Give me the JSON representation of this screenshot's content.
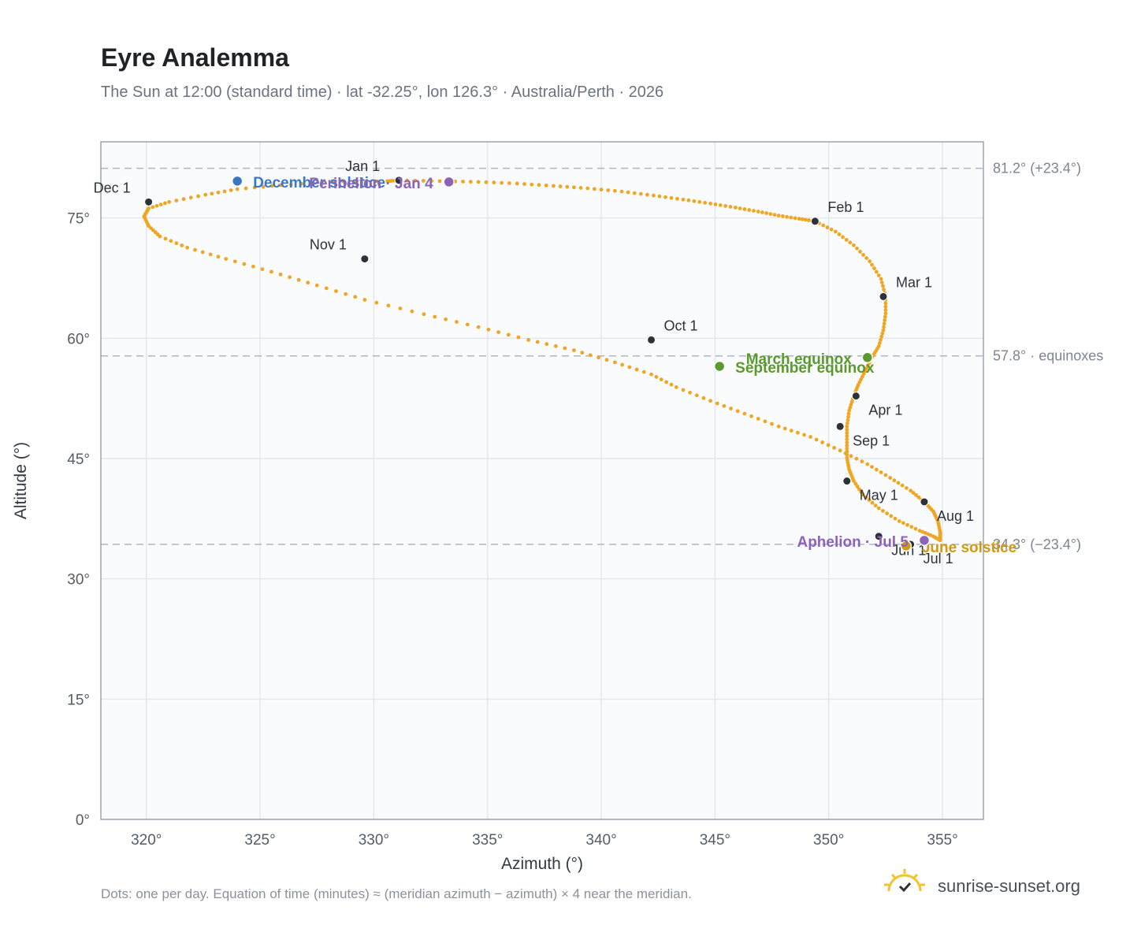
{
  "chart_data": {
    "type": "scatter",
    "title": "Eyre Analemma",
    "subtitle": "The Sun at 12:00 (standard time) · lat -32.25°, lon 126.3° · Australia/Perth · 2026",
    "xlabel": "Azimuth (°)",
    "ylabel": "Altitude (°)",
    "xlim": [
      318,
      356.8
    ],
    "ylim": [
      0,
      84.5
    ],
    "x_ticks": [
      {
        "value": 320,
        "label": "320°"
      },
      {
        "value": 325,
        "label": "325°"
      },
      {
        "value": 330,
        "label": "330°"
      },
      {
        "value": 335,
        "label": "335°"
      },
      {
        "value": 340,
        "label": "340°"
      },
      {
        "value": 345,
        "label": "345°"
      },
      {
        "value": 350,
        "label": "350°"
      },
      {
        "value": 355,
        "label": "355°"
      }
    ],
    "y_ticks": [
      {
        "value": 0,
        "label": "0°"
      },
      {
        "value": 15,
        "label": "15°"
      },
      {
        "value": 30,
        "label": "30°"
      },
      {
        "value": 45,
        "label": "45°"
      },
      {
        "value": 60,
        "label": "60°"
      },
      {
        "value": 75,
        "label": "75°"
      }
    ],
    "grid": true,
    "reference_lines": [
      {
        "altitude": 81.2,
        "label": "81.2° (+23.4°)"
      },
      {
        "altitude": 57.8,
        "label": "57.8° · equinoxes"
      },
      {
        "altitude": 34.3,
        "label": "34.3° (−23.4°)"
      }
    ],
    "month_markers": [
      {
        "label": "Jan 1",
        "azimuth": 331.1,
        "altitude": 79.7
      },
      {
        "label": "Feb 1",
        "azimuth": 349.4,
        "altitude": 74.6
      },
      {
        "label": "Mar 1",
        "azimuth": 352.4,
        "altitude": 65.2
      },
      {
        "label": "Apr 1",
        "azimuth": 351.2,
        "altitude": 52.8
      },
      {
        "label": "May 1",
        "azimuth": 350.8,
        "altitude": 42.2
      },
      {
        "label": "Jun 1",
        "azimuth": 352.2,
        "altitude": 35.3
      },
      {
        "label": "Jul 1",
        "azimuth": 353.6,
        "altitude": 34.3
      },
      {
        "label": "Aug 1",
        "azimuth": 354.2,
        "altitude": 39.6
      },
      {
        "label": "Sep 1",
        "azimuth": 350.5,
        "altitude": 49.0
      },
      {
        "label": "Oct 1",
        "azimuth": 342.2,
        "altitude": 59.8
      },
      {
        "label": "Nov 1",
        "azimuth": 329.6,
        "altitude": 69.9
      },
      {
        "label": "Dec 1",
        "azimuth": 320.1,
        "altitude": 77.0
      }
    ],
    "events": [
      {
        "label": "December solstice",
        "azimuth": 324.0,
        "altitude": 79.6,
        "color": "#3b78c0"
      },
      {
        "label": "Perihelion · Jan 4",
        "azimuth": 333.3,
        "altitude": 79.5,
        "color": "#8b63b8"
      },
      {
        "label": "March equinox",
        "azimuth": 351.7,
        "altitude": 57.6,
        "color": "#5a9a2c"
      },
      {
        "label": "September equinox",
        "azimuth": 345.2,
        "altitude": 56.5,
        "color": "#5a9a2c"
      },
      {
        "label": "June solstice",
        "azimuth": 353.4,
        "altitude": 34.1,
        "color": "#d39a12"
      },
      {
        "label": "Aphelion · Jul 5",
        "azimuth": 354.2,
        "altitude": 34.8,
        "color": "#8b63b8"
      }
    ],
    "series": [
      {
        "name": "",
        "color": "#f0a623",
        "points_note": "one point per day",
        "x": [
          331.1,
          332.9,
          334.6,
          336.3,
          337.9,
          339.4,
          340.9,
          342.3,
          343.6,
          344.8,
          345.9,
          346.9,
          347.8,
          348.7,
          349.4,
          350.3,
          351.1,
          351.8,
          352.3,
          352.5,
          352.5,
          352.4,
          352.2,
          351.9,
          351.6,
          351.3,
          351.1,
          350.9,
          350.8,
          350.8,
          350.8,
          350.9,
          351.1,
          351.5,
          352.2,
          353.1,
          354.0,
          354.6,
          354.9,
          354.9,
          354.8,
          354.6,
          354.2,
          353.6,
          352.7,
          351.7,
          350.5,
          349.2,
          347.8,
          346.3,
          344.8,
          343.3,
          342.2,
          340.6,
          338.8,
          336.8,
          334.6,
          332.2,
          329.6,
          327.5,
          325.5,
          323.5,
          321.8,
          320.6,
          320.1,
          319.9,
          320.1,
          321.0,
          322.6,
          324.0,
          325.9,
          328.2,
          330.6,
          331.1
        ],
        "y": [
          79.7,
          79.6,
          79.5,
          79.3,
          79.0,
          78.7,
          78.3,
          77.8,
          77.3,
          76.8,
          76.3,
          75.8,
          75.3,
          74.9,
          74.6,
          73.3,
          71.6,
          69.6,
          67.4,
          65.2,
          63.1,
          61.0,
          59.0,
          57.6,
          55.9,
          54.2,
          52.8,
          51.0,
          49.0,
          47.0,
          45.1,
          43.6,
          42.2,
          40.5,
          38.8,
          37.2,
          36.0,
          35.3,
          34.8,
          35.8,
          37.2,
          38.4,
          39.6,
          41.0,
          42.6,
          44.3,
          46.0,
          47.7,
          49.0,
          50.6,
          52.2,
          53.9,
          55.5,
          57.0,
          58.5,
          59.8,
          61.4,
          63.0,
          64.8,
          66.6,
          68.3,
          69.9,
          71.3,
          72.7,
          74.0,
          75.2,
          76.2,
          77.0,
          77.9,
          78.6,
          79.1,
          79.5,
          79.6,
          79.7
        ]
      }
    ],
    "footnote": "Dots: one per day. Equation of time (minutes) ≈ (meridian azimuth − azimuth) × 4 near the meridian.",
    "brand": "sunrise-sunset.org"
  }
}
